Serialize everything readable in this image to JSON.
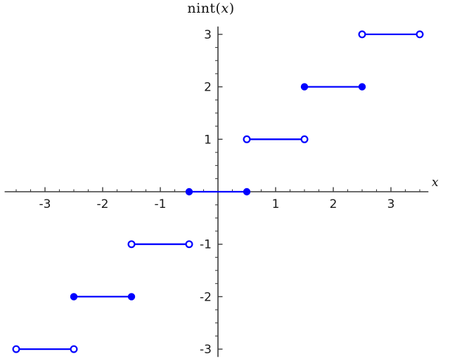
{
  "page": {
    "background": "#ffffff"
  },
  "chart_data": {
    "type": "line",
    "title": "nint(x)",
    "title_parts": [
      "nint(",
      "x",
      ")"
    ],
    "xlabel": "x",
    "ylabel": "",
    "xlim": [
      -3.7,
      3.65
    ],
    "ylim": [
      -3.15,
      3.15
    ],
    "x_major_ticks": [
      -3,
      -2,
      -1,
      1,
      2,
      3
    ],
    "y_major_ticks": [
      -3,
      -2,
      -1,
      1,
      2,
      3
    ],
    "minor_tick_step": 0.25,
    "x_minor_tick_range": [
      -3.5,
      3.5
    ],
    "y_minor_tick_range": [
      -3,
      3
    ],
    "grid": false,
    "legend_position": "none",
    "colors": {
      "series": "#0000ff",
      "marker_open_fill": "#ffffff",
      "axis": "#3c3c3c",
      "tick_label": "#1a1a1a",
      "background": "#ffffff"
    },
    "segments": [
      {
        "y": 3,
        "x_start": 2.5,
        "x_end": 3.5,
        "start_closed": false,
        "end_closed": false
      },
      {
        "y": 2,
        "x_start": 1.5,
        "x_end": 2.5,
        "start_closed": true,
        "end_closed": true
      },
      {
        "y": 1,
        "x_start": 0.5,
        "x_end": 1.5,
        "start_closed": false,
        "end_closed": false
      },
      {
        "y": 0,
        "x_start": -0.5,
        "x_end": 0.5,
        "start_closed": true,
        "end_closed": true
      },
      {
        "y": -1,
        "x_start": -1.5,
        "x_end": -0.5,
        "start_closed": false,
        "end_closed": false
      },
      {
        "y": -2,
        "x_start": -2.5,
        "x_end": -1.5,
        "start_closed": true,
        "end_closed": true
      },
      {
        "y": -3,
        "x_start": -3.5,
        "x_end": -2.5,
        "start_closed": false,
        "end_closed": false
      }
    ]
  }
}
